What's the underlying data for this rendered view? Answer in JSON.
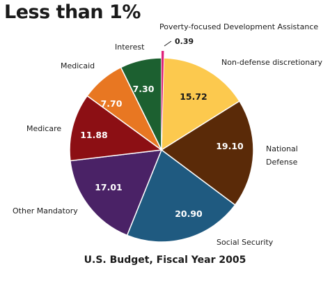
{
  "headline": "Less than 1%",
  "chart_data": {
    "type": "pie",
    "title": "U.S. Budget, Fiscal Year 2005",
    "unit_note": "",
    "slices": [
      {
        "label": "Poverty-focused Development Assistance",
        "value": 0.39,
        "value_label": "0.39",
        "color": "#e0237a"
      },
      {
        "label": "Non-defense discretionary",
        "value": 15.72,
        "value_label": "15.72",
        "color": "#fcc94e"
      },
      {
        "label": "National Defense",
        "value": 19.1,
        "value_label": "19.10",
        "color": "#5a2a08"
      },
      {
        "label": "Social Security",
        "value": 20.9,
        "value_label": "20.90",
        "color": "#1f5a80"
      },
      {
        "label": "Other Mandatory",
        "value": 17.01,
        "value_label": "17.01",
        "color": "#4a2266"
      },
      {
        "label": "Medicare",
        "value": 11.88,
        "value_label": "11.88",
        "color": "#8c0f14"
      },
      {
        "label": "Medicaid",
        "value": 7.7,
        "value_label": "7.70",
        "color": "#e87722"
      },
      {
        "label": "Interest",
        "value": 7.3,
        "value_label": "7.30",
        "color": "#1c6030"
      }
    ]
  }
}
